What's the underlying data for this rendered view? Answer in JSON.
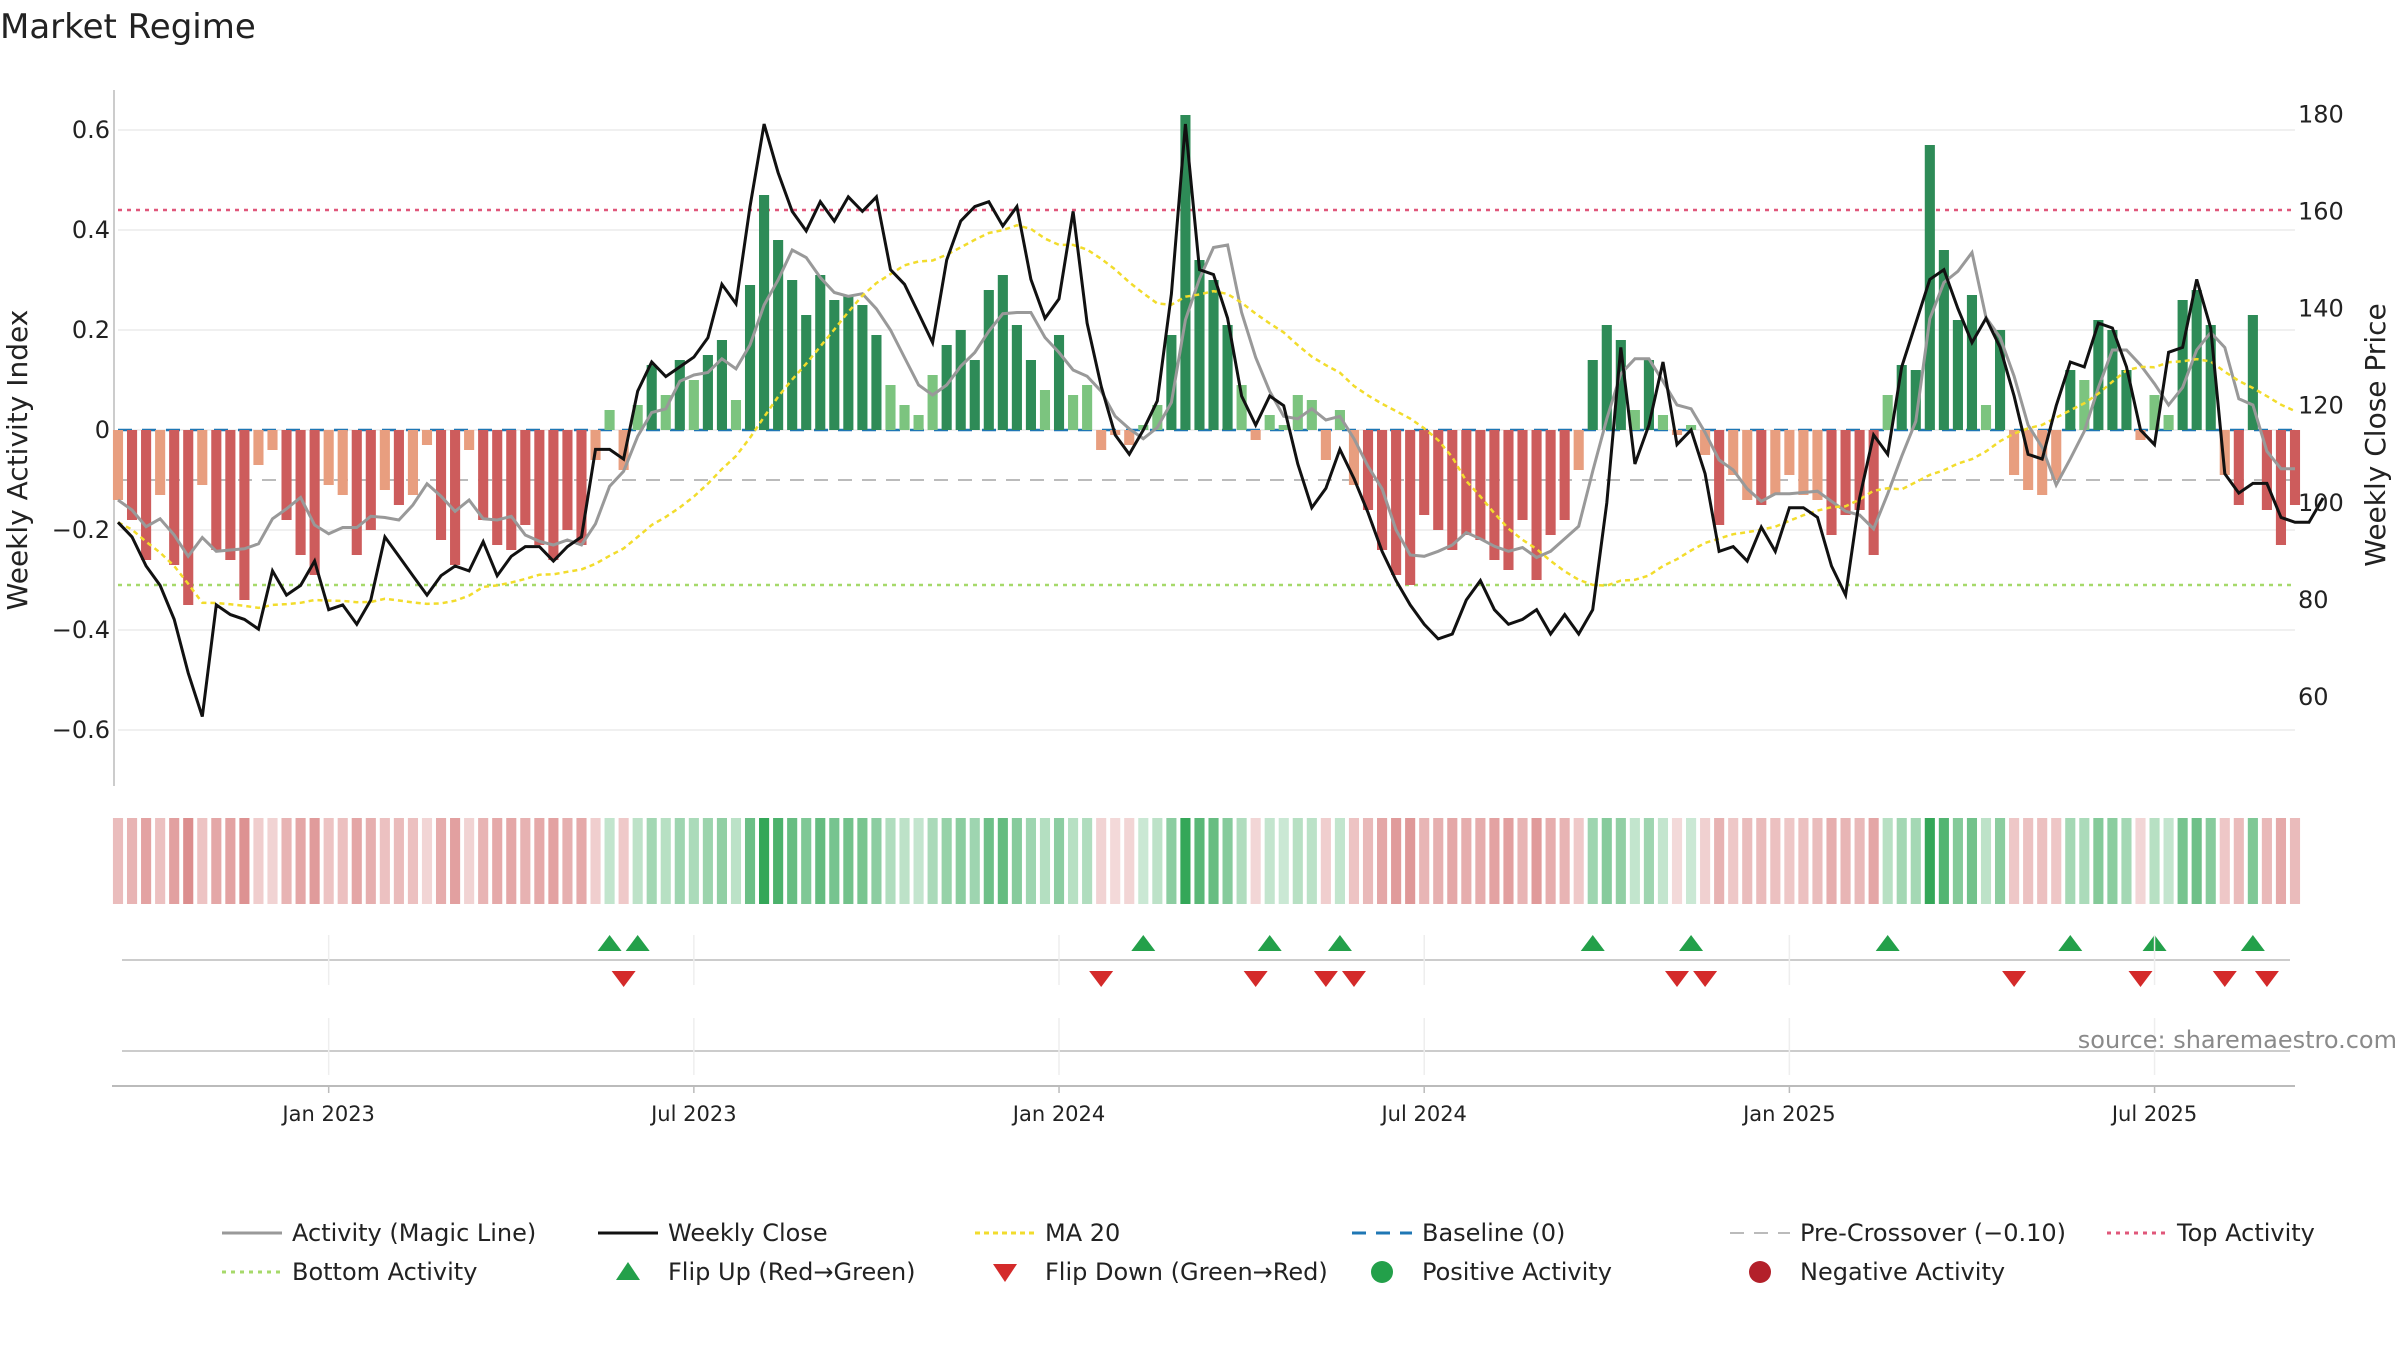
{
  "chart_data": {
    "type": "bar",
    "title": "Market Regime",
    "ylabel_left": "Weekly Activity Index",
    "ylabel_right": "Weekly Close Price",
    "ylim_left": [
      -0.68,
      0.68
    ],
    "ylim_right": [
      45,
      185
    ],
    "left_ticks": [
      -0.6,
      -0.4,
      -0.2,
      0,
      0.2,
      0.4,
      0.6
    ],
    "left_tick_labels": [
      "−0.6",
      "−0.4",
      "−0.2",
      "0",
      "0.2",
      "0.4",
      "0.6"
    ],
    "right_ticks": [
      60,
      80,
      100,
      120,
      140,
      160,
      180
    ],
    "right_tick_labels": [
      "60",
      "80",
      "100",
      "120",
      "140",
      "160",
      "180"
    ],
    "x_tick_labels": [
      "Jan 2023",
      "Jul 2023",
      "Jan 2024",
      "Jul 2024",
      "Jan 2025",
      "Jul 2025"
    ],
    "x_tick_weeks": [
      15,
      41,
      67,
      93,
      119,
      145
    ],
    "source_text": "source: sharemaestro.com",
    "reference_lines": {
      "top_activity": 0.44,
      "bottom_activity": -0.31,
      "pre_crossover": -0.1,
      "baseline": 0
    },
    "activity": [
      -0.14,
      -0.18,
      -0.26,
      -0.13,
      -0.27,
      -0.35,
      -0.11,
      -0.24,
      -0.26,
      -0.34,
      -0.07,
      -0.04,
      -0.18,
      -0.25,
      -0.29,
      -0.11,
      -0.13,
      -0.25,
      -0.2,
      -0.12,
      -0.15,
      -0.13,
      -0.03,
      -0.22,
      -0.27,
      -0.04,
      -0.18,
      -0.23,
      -0.24,
      -0.19,
      -0.23,
      -0.26,
      -0.2,
      -0.23,
      -0.06,
      0.04,
      -0.08,
      0.05,
      0.13,
      0.07,
      0.14,
      0.1,
      0.15,
      0.18,
      0.06,
      0.29,
      0.47,
      0.38,
      0.3,
      0.23,
      0.31,
      0.26,
      0.27,
      0.25,
      0.19,
      0.09,
      0.05,
      0.03,
      0.11,
      0.17,
      0.2,
      0.14,
      0.28,
      0.31,
      0.21,
      0.14,
      0.08,
      0.19,
      0.07,
      0.09,
      -0.04,
      -0.01,
      -0.03,
      0.01,
      0.05,
      0.19,
      0.63,
      0.34,
      0.3,
      0.21,
      0.09,
      -0.02,
      0.03,
      0.01,
      0.07,
      0.06,
      -0.06,
      0.04,
      -0.11,
      -0.16,
      -0.24,
      -0.29,
      -0.31,
      -0.17,
      -0.2,
      -0.24,
      -0.21,
      -0.22,
      -0.26,
      -0.28,
      -0.18,
      -0.3,
      -0.21,
      -0.18,
      -0.08,
      0.14,
      0.21,
      0.18,
      0.04,
      0.14,
      0.03,
      -0.01,
      0.01,
      -0.05,
      -0.19,
      -0.09,
      -0.14,
      -0.15,
      -0.13,
      -0.09,
      -0.13,
      -0.14,
      -0.21,
      -0.17,
      -0.16,
      -0.25,
      0.07,
      0.13,
      0.12,
      0.57,
      0.36,
      0.22,
      0.27,
      0.05,
      0.2,
      -0.09,
      -0.12,
      -0.13,
      -0.1,
      0.12,
      0.1,
      0.22,
      0.2,
      0.12,
      -0.02,
      0.07,
      0.03,
      0.26,
      0.28,
      0.21,
      -0.09,
      -0.15,
      0.23,
      -0.16,
      -0.23,
      -0.15
    ],
    "weekly_close": [
      96,
      93,
      87,
      83,
      76,
      65,
      56,
      79,
      77,
      76,
      74,
      86,
      81,
      83,
      88,
      78,
      79,
      75,
      80,
      93,
      89,
      85,
      81,
      85,
      87,
      86,
      92,
      85,
      89,
      91,
      91,
      88,
      91,
      93,
      111,
      111,
      109,
      123,
      129,
      126,
      128,
      130,
      134,
      145,
      141,
      161,
      178,
      168,
      160,
      156,
      162,
      158,
      163,
      160,
      163,
      148,
      145,
      139,
      133,
      150,
      158,
      161,
      162,
      157,
      161,
      146,
      138,
      142,
      160,
      137,
      124,
      114,
      110,
      115,
      121,
      143,
      178,
      148,
      147,
      138,
      122,
      116,
      122,
      120,
      108,
      99,
      103,
      111,
      105,
      98,
      90,
      84,
      79,
      75,
      72,
      73,
      80,
      84,
      78,
      75,
      76,
      78,
      73,
      77,
      73,
      78,
      100,
      132,
      108,
      116,
      129,
      112,
      115,
      106,
      90,
      91,
      88,
      95,
      90,
      99,
      99,
      97,
      87,
      81,
      101,
      114,
      110,
      128,
      137,
      146,
      148,
      140,
      133,
      138,
      132,
      122,
      110,
      109,
      120,
      129,
      128,
      137,
      136,
      128,
      115,
      112,
      131,
      132,
      146,
      136,
      106,
      102,
      104,
      104,
      97,
      96,
      96,
      101
    ]
  },
  "legend": [
    {
      "key": "activity_line",
      "label": "Activity (Magic Line)"
    },
    {
      "key": "weekly_close",
      "label": "Weekly Close"
    },
    {
      "key": "ma20",
      "label": "MA 20"
    },
    {
      "key": "baseline",
      "label": "Baseline (0)"
    },
    {
      "key": "pre_crossover",
      "label": "Pre-Crossover (−0.10)"
    },
    {
      "key": "top_activity",
      "label": "Top Activity"
    },
    {
      "key": "bottom_activity",
      "label": "Bottom Activity"
    },
    {
      "key": "flip_up",
      "label": "Flip Up (Red→Green)"
    },
    {
      "key": "flip_down",
      "label": "Flip Down (Green→Red)"
    },
    {
      "key": "positive_activity",
      "label": "Positive Activity"
    },
    {
      "key": "negative_activity",
      "label": "Negative Activity"
    }
  ],
  "colors": {
    "pos_strong": "#2e8b57",
    "pos_weak": "#7cc47f",
    "neg_strong": "#cd5c5c",
    "neg_weak": "#e89e7f",
    "close_line": "#111111",
    "activity_line": "#999999",
    "ma20": "#f2dc2c",
    "baseline": "#1f77b4",
    "pre_crossover": "#bbbbbb",
    "top_activity": "#e0577a",
    "bottom_activity": "#a6d96a",
    "flip_up": "#23a04a",
    "flip_down": "#d42a2a",
    "positive_dot": "#23a04a",
    "negative_dot": "#b3202a",
    "grid": "#e6e6e6",
    "axis": "#bbbbbb"
  }
}
